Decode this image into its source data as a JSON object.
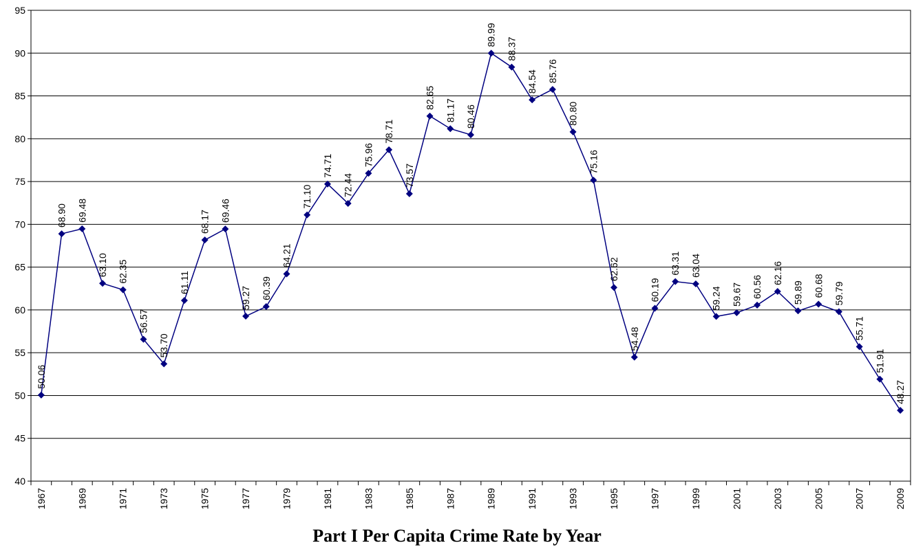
{
  "chart_data": {
    "type": "line",
    "title": "Part I Per Capita Crime Rate by Year",
    "xlabel": "",
    "ylabel": "",
    "ylim": [
      40,
      95
    ],
    "yticks": [
      40,
      45,
      50,
      55,
      60,
      65,
      70,
      75,
      80,
      85,
      90,
      95
    ],
    "x_tick_labels": [
      "1967",
      "1969",
      "1971",
      "1973",
      "1975",
      "1977",
      "1979",
      "1981",
      "1983",
      "1985",
      "1987",
      "1989",
      "1991",
      "1993",
      "1995",
      "1997",
      "1999",
      "2001",
      "2003",
      "2005",
      "2007",
      "2009"
    ],
    "grid": "horizontal",
    "legend": "none",
    "line_color": "#000080",
    "x": [
      1967,
      1968,
      1969,
      1970,
      1971,
      1972,
      1973,
      1974,
      1975,
      1976,
      1977,
      1978,
      1979,
      1980,
      1981,
      1982,
      1983,
      1984,
      1985,
      1986,
      1987,
      1988,
      1989,
      1990,
      1991,
      1992,
      1993,
      1994,
      1995,
      1996,
      1997,
      1998,
      1999,
      2000,
      2001,
      2002,
      2003,
      2004,
      2005,
      2006,
      2007,
      2008,
      2009
    ],
    "values": [
      50.06,
      68.9,
      69.48,
      63.1,
      62.35,
      56.57,
      53.7,
      61.11,
      68.17,
      69.46,
      59.27,
      60.39,
      64.21,
      71.1,
      74.71,
      72.44,
      75.96,
      78.71,
      73.57,
      82.65,
      81.17,
      80.46,
      89.99,
      88.37,
      84.54,
      85.76,
      80.8,
      75.16,
      62.62,
      54.48,
      60.19,
      63.31,
      63.04,
      59.24,
      59.67,
      60.56,
      62.16,
      59.89,
      60.68,
      59.79,
      55.71,
      51.91,
      48.27
    ],
    "data_labels": [
      "50.06",
      "68.90",
      "69.48",
      "63.10",
      "62.35",
      "56.57",
      "53.70",
      "61.11",
      "68.17",
      "69.46",
      "59.27",
      "60.39",
      "64.21",
      "71.10",
      "74.71",
      "72.44",
      "75.96",
      "78.71",
      "73.57",
      "82.65",
      "81.17",
      "80.46",
      "89.99",
      "88.37",
      "84.54",
      "85.76",
      "80.80",
      "75.16",
      "62.62",
      "54.48",
      "60.19",
      "63.31",
      "63.04",
      "59.24",
      "59.67",
      "60.56",
      "62.16",
      "59.89",
      "60.68",
      "59.79",
      "55.71",
      "51.91",
      "48.27"
    ]
  }
}
